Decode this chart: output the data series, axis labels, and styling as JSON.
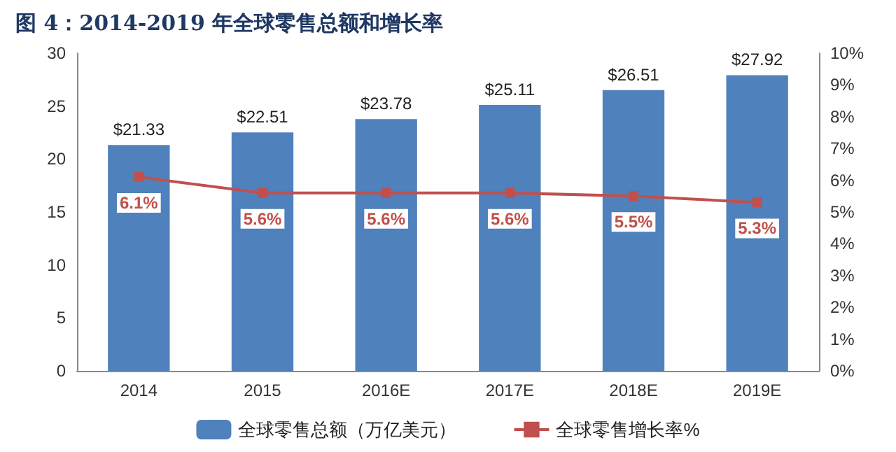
{
  "chart_data": {
    "type": "bar",
    "title": "图 4：2014-2019 年全球零售总额和增长率",
    "categories": [
      "2014",
      "2015",
      "2016E",
      "2017E",
      "2018E",
      "2019E"
    ],
    "series": [
      {
        "name": "全球零售总额（万亿美元）",
        "color": "#4f81bd",
        "values": [
          21.33,
          22.51,
          23.78,
          25.11,
          26.51,
          27.92
        ],
        "value_labels": [
          "$21.33",
          "$22.51",
          "$23.78",
          "$25.11",
          "$26.51",
          "$27.92"
        ]
      },
      {
        "name": "全球零售增长率%",
        "type": "line",
        "axis": "y2",
        "color": "#c0504d",
        "marker": "square",
        "values": [
          6.1,
          5.6,
          5.6,
          5.6,
          5.5,
          5.3
        ],
        "value_labels": [
          "6.1%",
          "5.6%",
          "5.6%",
          "5.6%",
          "5.5%",
          "5.3%"
        ]
      }
    ],
    "ylim": [
      0,
      30
    ],
    "yticks": [
      0,
      5,
      10,
      15,
      20,
      25,
      30
    ],
    "y2lim": [
      0,
      10
    ],
    "y2ticks": [
      {
        "value": 0,
        "label": "0%"
      },
      {
        "value": 1,
        "label": "1%"
      },
      {
        "value": 2,
        "label": "2%"
      },
      {
        "value": 3,
        "label": "3%"
      },
      {
        "value": 4,
        "label": "4%"
      },
      {
        "value": 5,
        "label": "5%"
      },
      {
        "value": 6,
        "label": "6%"
      },
      {
        "value": 7,
        "label": "7%"
      },
      {
        "value": 8,
        "label": "8%"
      },
      {
        "value": 9,
        "label": "9%"
      },
      {
        "value": 10,
        "label": "10%"
      }
    ],
    "legend": "bottom"
  }
}
